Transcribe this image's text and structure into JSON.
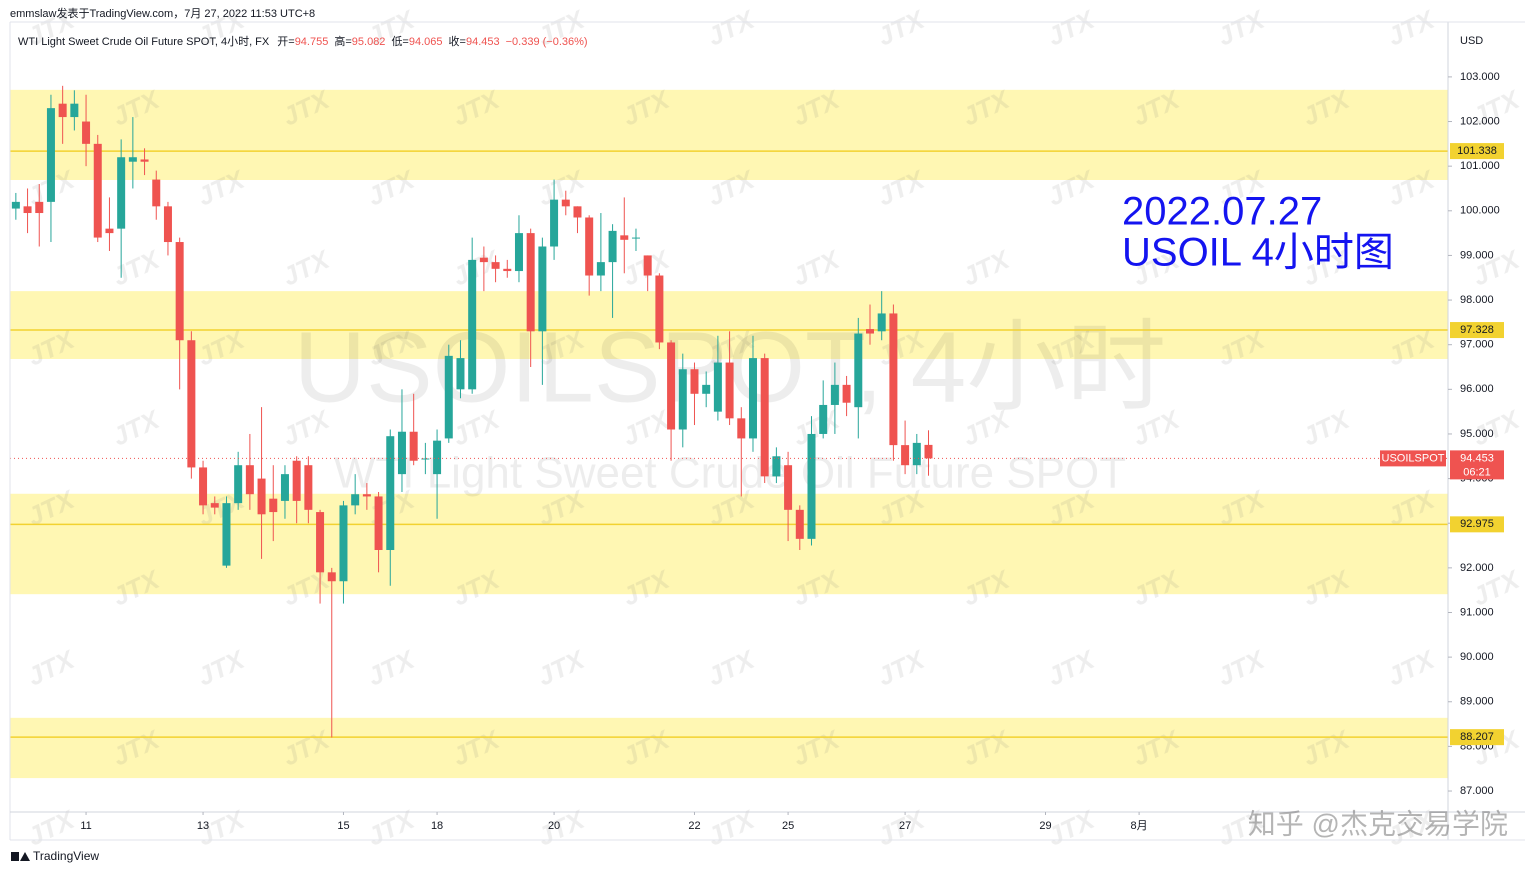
{
  "chart_data": {
    "type": "candlestick",
    "header": "emmslaw发表于TradingView.com，7月 27, 2022 11:53 UTC+8",
    "title": "WTI Light Sweet Crude Oil Future SPOT, 4小时, FX",
    "ohlc_legend": [
      {
        "label": "开=",
        "value": 94.755
      },
      {
        "label": "高=",
        "value": 95.082
      },
      {
        "label": "低=",
        "value": 94.065
      },
      {
        "label": "收=",
        "value": 94.453
      }
    ],
    "change": "−0.339 (−0.36%)",
    "watermark": "USOILSPOT, 4小时",
    "watermark_subtitle": "WTI Light Sweet Crude Oil Future SPOT",
    "annotation": [
      "2022.07.27",
      "USOIL 4小时图"
    ],
    "currency": "USD",
    "open": [
      100.05,
      100.1,
      100.2,
      100.2,
      102.4,
      102.1,
      102.0,
      101.5,
      99.6,
      99.6,
      101.1,
      101.15,
      100.7,
      100.1,
      99.3,
      97.1,
      94.25,
      93.45,
      92.05,
      93.45,
      94.3,
      94.0,
      93.55,
      93.5,
      94.4,
      94.3,
      93.25,
      91.9,
      91.7,
      93.4,
      93.65,
      93.6,
      92.4,
      94.1,
      95.05,
      94.45,
      94.1,
      94.9,
      96.0,
      96.0,
      98.95,
      98.85,
      98.7,
      98.65,
      99.5,
      97.3,
      99.2,
      100.25,
      100.1,
      99.85,
      98.55,
      98.85,
      99.45,
      99.4,
      99.0,
      98.55,
      97.05,
      95.1,
      96.45,
      95.9,
      95.5,
      96.6,
      95.35,
      94.9,
      96.7,
      94.05,
      94.3,
      93.3,
      92.65,
      95.0,
      95.65,
      96.1,
      95.6,
      97.35,
      97.3,
      97.7,
      94.75,
      94.3,
      94.755
    ],
    "high": [
      100.4,
      100.5,
      100.6,
      102.6,
      102.8,
      102.7,
      102.6,
      101.7,
      100.3,
      101.6,
      102.1,
      101.4,
      100.9,
      100.2,
      99.4,
      97.3,
      94.4,
      93.6,
      93.6,
      94.6,
      95.0,
      95.6,
      94.3,
      94.3,
      94.5,
      94.5,
      93.3,
      92.0,
      93.5,
      94.1,
      93.9,
      93.7,
      95.1,
      96.0,
      95.9,
      94.8,
      95.1,
      97.0,
      97.1,
      99.4,
      99.2,
      99.0,
      98.9,
      99.9,
      99.6,
      99.4,
      100.7,
      100.45,
      100.1,
      99.9,
      99.95,
      99.7,
      100.3,
      99.6,
      99.0,
      98.6,
      97.1,
      96.8,
      96.6,
      96.4,
      97.2,
      97.3,
      95.6,
      97.2,
      96.8,
      94.7,
      94.6,
      93.4,
      95.4,
      96.2,
      96.6,
      96.3,
      97.6,
      97.9,
      98.2,
      97.9,
      95.3,
      95.0,
      95.082
    ],
    "low": [
      99.8,
      99.5,
      99.2,
      99.3,
      101.5,
      101.8,
      101.0,
      99.3,
      99.1,
      98.5,
      100.5,
      100.8,
      99.8,
      99.0,
      96.0,
      94.0,
      93.2,
      93.2,
      92.0,
      93.3,
      93.3,
      92.2,
      92.6,
      93.1,
      93.0,
      93.0,
      91.2,
      88.2,
      91.2,
      93.2,
      93.3,
      91.9,
      91.6,
      93.7,
      94.3,
      94.1,
      93.1,
      94.8,
      95.8,
      95.9,
      98.2,
      98.4,
      98.5,
      98.4,
      96.5,
      96.1,
      98.9,
      99.9,
      99.5,
      98.1,
      98.2,
      97.6,
      98.6,
      99.1,
      98.2,
      96.9,
      94.4,
      94.7,
      95.2,
      95.6,
      95.3,
      95.2,
      93.6,
      94.6,
      93.9,
      93.9,
      92.6,
      92.4,
      92.5,
      94.9,
      95.0,
      95.4,
      94.9,
      97.0,
      97.1,
      94.4,
      94.1,
      94.1,
      94.065
    ],
    "close": [
      100.2,
      99.95,
      99.95,
      102.3,
      102.1,
      102.4,
      101.5,
      99.4,
      99.5,
      101.2,
      101.2,
      101.1,
      100.1,
      99.3,
      97.1,
      94.25,
      93.4,
      93.35,
      93.45,
      94.3,
      93.65,
      93.2,
      93.25,
      94.1,
      93.5,
      93.3,
      91.9,
      91.7,
      93.4,
      93.65,
      93.6,
      92.4,
      94.95,
      95.05,
      94.4,
      94.45,
      94.85,
      96.75,
      96.7,
      98.9,
      98.85,
      98.7,
      98.65,
      99.5,
      97.3,
      99.2,
      100.25,
      100.1,
      99.85,
      98.55,
      98.85,
      99.55,
      99.35,
      99.4,
      98.55,
      97.05,
      95.1,
      96.45,
      95.9,
      96.1,
      96.6,
      95.35,
      94.9,
      96.7,
      94.05,
      94.5,
      93.3,
      92.65,
      95.0,
      95.65,
      96.1,
      95.7,
      97.25,
      97.25,
      97.7,
      94.75,
      94.3,
      94.8,
      94.453
    ],
    "up_color": "#26a69a",
    "down_color": "#ef5350",
    "xlim": [
      -0.5,
      122.4
    ],
    "xticks": [
      {
        "value": 6,
        "label": "11"
      },
      {
        "value": 16,
        "label": "13"
      },
      {
        "value": 28,
        "label": "15"
      },
      {
        "value": 36,
        "label": "18"
      },
      {
        "value": 46,
        "label": "20"
      },
      {
        "value": 58,
        "label": "22"
      },
      {
        "value": 66,
        "label": "25"
      },
      {
        "value": 76,
        "label": "27"
      },
      {
        "value": 88,
        "label": "29"
      },
      {
        "value": 96,
        "label": "8月"
      }
    ],
    "ylim": [
      86.53,
      104.23
    ],
    "yticks": [
      {
        "value": 87,
        "label": "87.000"
      },
      {
        "value": 88,
        "label": "88.000"
      },
      {
        "value": 89,
        "label": "89.000"
      },
      {
        "value": 90,
        "label": "90.000"
      },
      {
        "value": 91,
        "label": "91.000"
      },
      {
        "value": 92,
        "label": "92.000"
      },
      {
        "value": 93,
        "label": "93.000"
      },
      {
        "value": 94,
        "label": "94.000"
      },
      {
        "value": 95,
        "label": "95.000"
      },
      {
        "value": 96,
        "label": "96.000"
      },
      {
        "value": 97,
        "label": "97.000"
      },
      {
        "value": 98,
        "label": "98.000"
      },
      {
        "value": 99,
        "label": "99.000"
      },
      {
        "value": 100,
        "label": "100.000"
      },
      {
        "value": 101,
        "label": "101.000"
      },
      {
        "value": 102,
        "label": "102.000"
      },
      {
        "value": 103,
        "label": "103.000"
      }
    ],
    "levels": [
      101.338,
      97.328,
      92.975,
      88.207
    ],
    "level_color": "#f2d230",
    "zones": [
      [
        102.71,
        100.69
      ],
      [
        98.2,
        96.68
      ],
      [
        93.66,
        91.41
      ],
      [
        88.64,
        87.29
      ]
    ],
    "zone_color": "#fff7b3",
    "last_price": {
      "symbol": "USOILSPOT",
      "value": 94.453,
      "countdown": "06:21"
    },
    "grid": false
  },
  "branding": {
    "platform": "TradingView",
    "source": "知乎 @杰克交易学院",
    "watermark": "JTX"
  }
}
